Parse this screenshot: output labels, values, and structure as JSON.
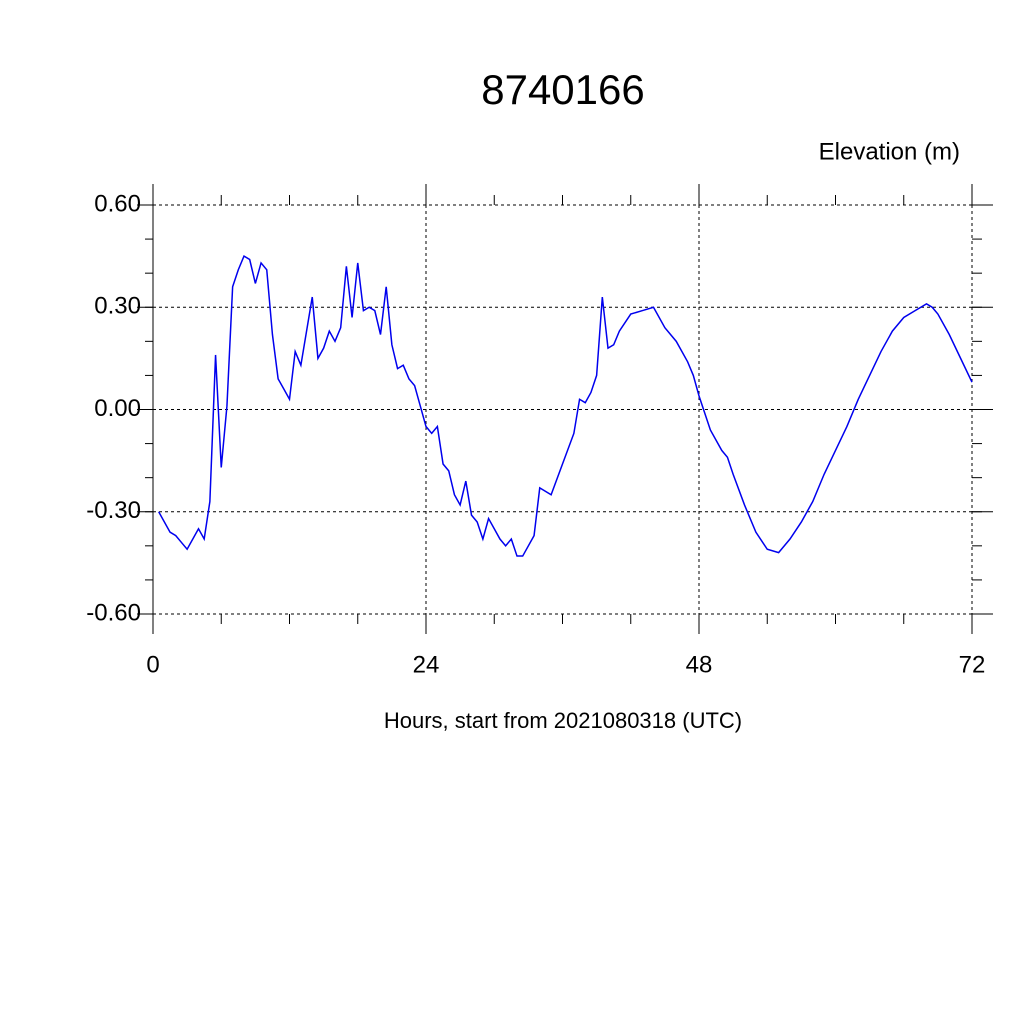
{
  "chart_data": {
    "type": "line",
    "title": "8740166",
    "y_label": "Elevation (m)",
    "x_label": "Hours, start from 2021080318 (UTC)",
    "xlim": [
      0,
      72
    ],
    "ylim": [
      -0.6,
      0.6
    ],
    "xticks": [
      0,
      24,
      48,
      72
    ],
    "yticks": [
      {
        "value": 0.6,
        "label": "0.60"
      },
      {
        "value": 0.3,
        "label": "0.30"
      },
      {
        "value": 0,
        "label": "0.00"
      },
      {
        "value": -0.3,
        "label": "-0.30"
      },
      {
        "value": -0.6,
        "label": "-0.60"
      }
    ],
    "grid": true,
    "series": [
      {
        "color": "#0000ee",
        "x": [
          0.5,
          1.5,
          2,
          2.5,
          3,
          3.5,
          4,
          4.5,
          5,
          5.5,
          6,
          6.5,
          7,
          7.5,
          8,
          8.5,
          9,
          9.5,
          10,
          10.5,
          11,
          11.5,
          12,
          12.5,
          13,
          13.5,
          14,
          14.5,
          15,
          15.5,
          16,
          16.5,
          17,
          17.5,
          18,
          18.5,
          19,
          19.5,
          20,
          20.5,
          21,
          21.5,
          22,
          22.5,
          23,
          23.5,
          24,
          24.5,
          25,
          25.5,
          26,
          26.5,
          27,
          27.5,
          28,
          28.5,
          29,
          29.5,
          30,
          30.5,
          31,
          31.5,
          32,
          32.5,
          33.5,
          34,
          35,
          36,
          37,
          37.5,
          38,
          38.5,
          39,
          39.5,
          40,
          40.5,
          41,
          42,
          43,
          44,
          45,
          46,
          47,
          47.5,
          48,
          49,
          50,
          50.5,
          51,
          52,
          53,
          54,
          55,
          56,
          57,
          58,
          59,
          60,
          61,
          62,
          63,
          64,
          65,
          66,
          67,
          68,
          68.5,
          69,
          70,
          71,
          72
        ],
        "values": [
          -0.3,
          -0.36,
          -0.37,
          -0.39,
          -0.41,
          -0.38,
          -0.35,
          -0.38,
          -0.27,
          0.16,
          -0.17,
          0.01,
          0.36,
          0.41,
          0.45,
          0.44,
          0.37,
          0.43,
          0.41,
          0.22,
          0.09,
          0.06,
          0.03,
          0.17,
          0.13,
          0.23,
          0.33,
          0.15,
          0.18,
          0.23,
          0.2,
          0.24,
          0.42,
          0.27,
          0.43,
          0.29,
          0.3,
          0.29,
          0.22,
          0.36,
          0.19,
          0.12,
          0.13,
          0.09,
          0.07,
          0.01,
          -0.05,
          -0.07,
          -0.05,
          -0.16,
          -0.18,
          -0.25,
          -0.28,
          -0.21,
          -0.31,
          -0.33,
          -0.38,
          -0.32,
          -0.35,
          -0.38,
          -0.4,
          -0.38,
          -0.43,
          -0.43,
          -0.37,
          -0.23,
          -0.25,
          -0.16,
          -0.07,
          0.03,
          0.02,
          0.05,
          0.1,
          0.33,
          0.18,
          0.19,
          0.23,
          0.28,
          0.29,
          0.3,
          0.24,
          0.2,
          0.14,
          0.1,
          0.04,
          -0.06,
          -0.12,
          -0.14,
          -0.19,
          -0.28,
          -0.36,
          -0.41,
          -0.42,
          -0.38,
          -0.33,
          -0.27,
          -0.19,
          -0.12,
          -0.05,
          0.03,
          0.1,
          0.17,
          0.23,
          0.27,
          0.29,
          0.31,
          0.3,
          0.28,
          0.22,
          0.15,
          0.08
        ]
      }
    ]
  }
}
